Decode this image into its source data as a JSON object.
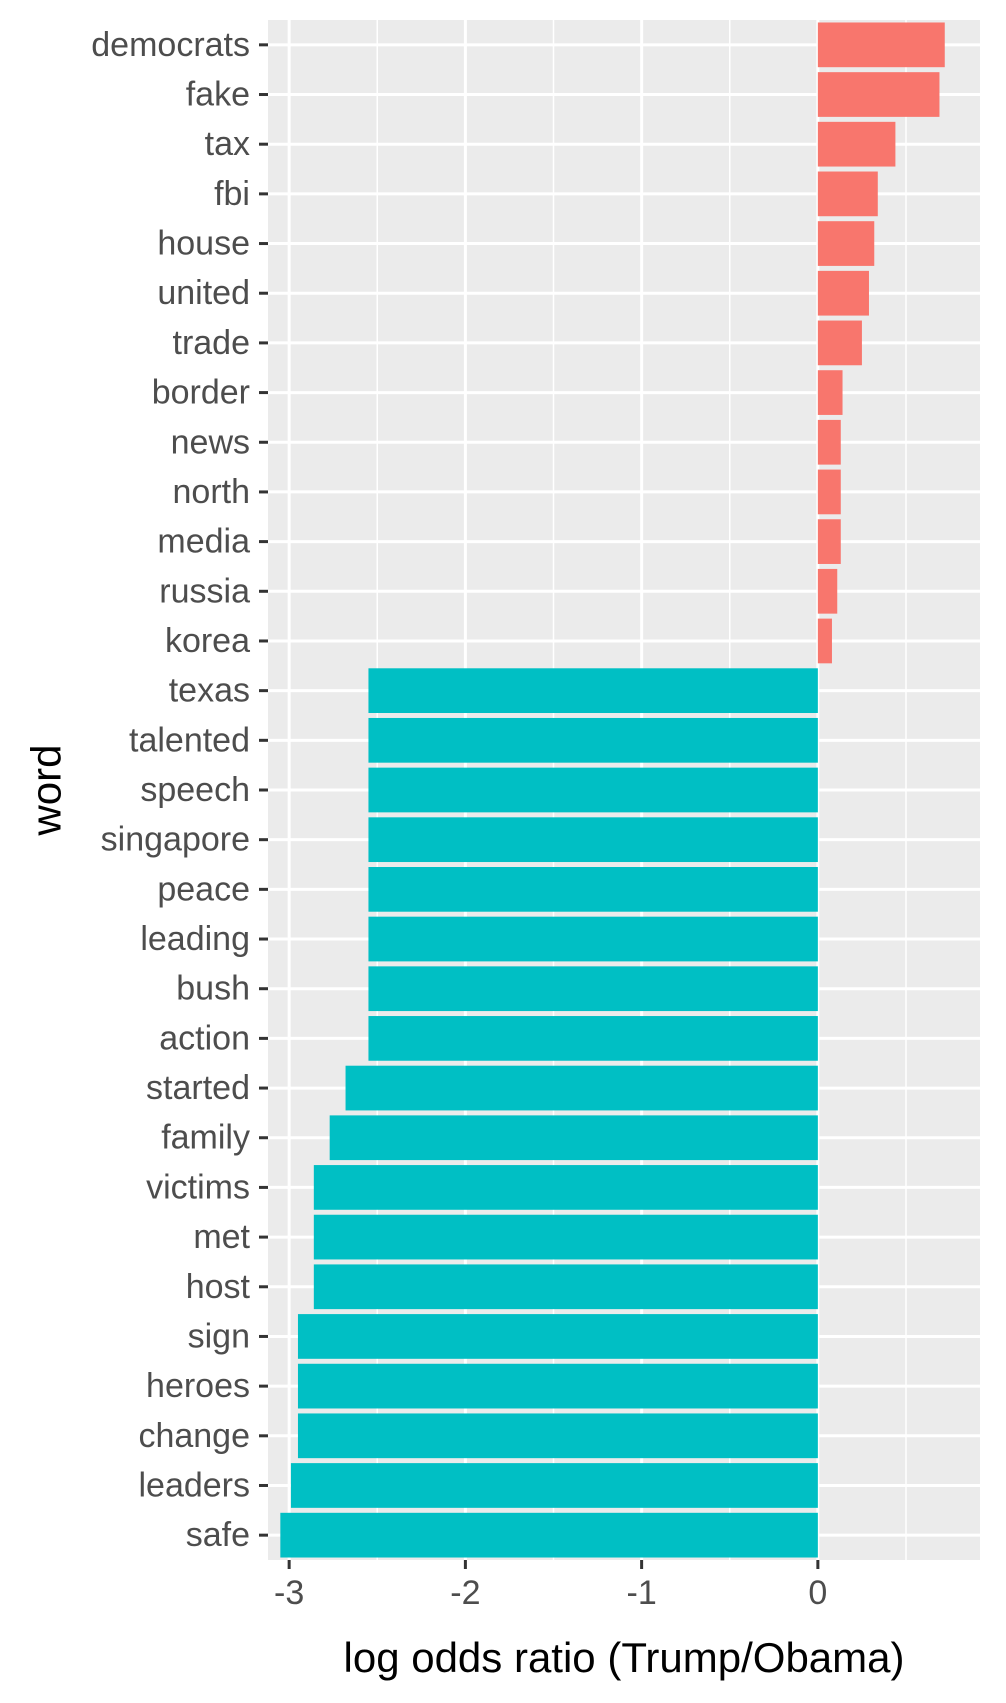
{
  "chart_data": {
    "type": "bar",
    "orientation": "horizontal",
    "xlabel": "log odds ratio (Trump/Obama)",
    "ylabel": "word",
    "xlim": [
      -3.12,
      0.92
    ],
    "x_ticks": [
      -3,
      -2,
      -1,
      0
    ],
    "x_tick_labels": [
      "-3",
      "-2",
      "-1",
      "0"
    ],
    "grid": true,
    "legend": "none",
    "colors": {
      "positive": "#F8766D",
      "negative": "#00BFC4",
      "panel": "#EBEBEB",
      "grid": "#FFFFFF",
      "tick_text": "#4D4D4D"
    },
    "categories": [
      "democrats",
      "fake",
      "tax",
      "fbi",
      "house",
      "united",
      "trade",
      "border",
      "news",
      "north",
      "media",
      "russia",
      "korea",
      "texas",
      "talented",
      "speech",
      "singapore",
      "peace",
      "leading",
      "bush",
      "action",
      "started",
      "family",
      "victims",
      "met",
      "host",
      "sign",
      "heroes",
      "change",
      "leaders",
      "safe"
    ],
    "values": [
      0.72,
      0.69,
      0.44,
      0.34,
      0.32,
      0.29,
      0.25,
      0.14,
      0.13,
      0.13,
      0.13,
      0.11,
      0.08,
      -2.55,
      -2.55,
      -2.55,
      -2.55,
      -2.55,
      -2.55,
      -2.55,
      -2.55,
      -2.68,
      -2.77,
      -2.86,
      -2.86,
      -2.86,
      -2.95,
      -2.95,
      -2.95,
      -2.99,
      -3.05
    ]
  }
}
